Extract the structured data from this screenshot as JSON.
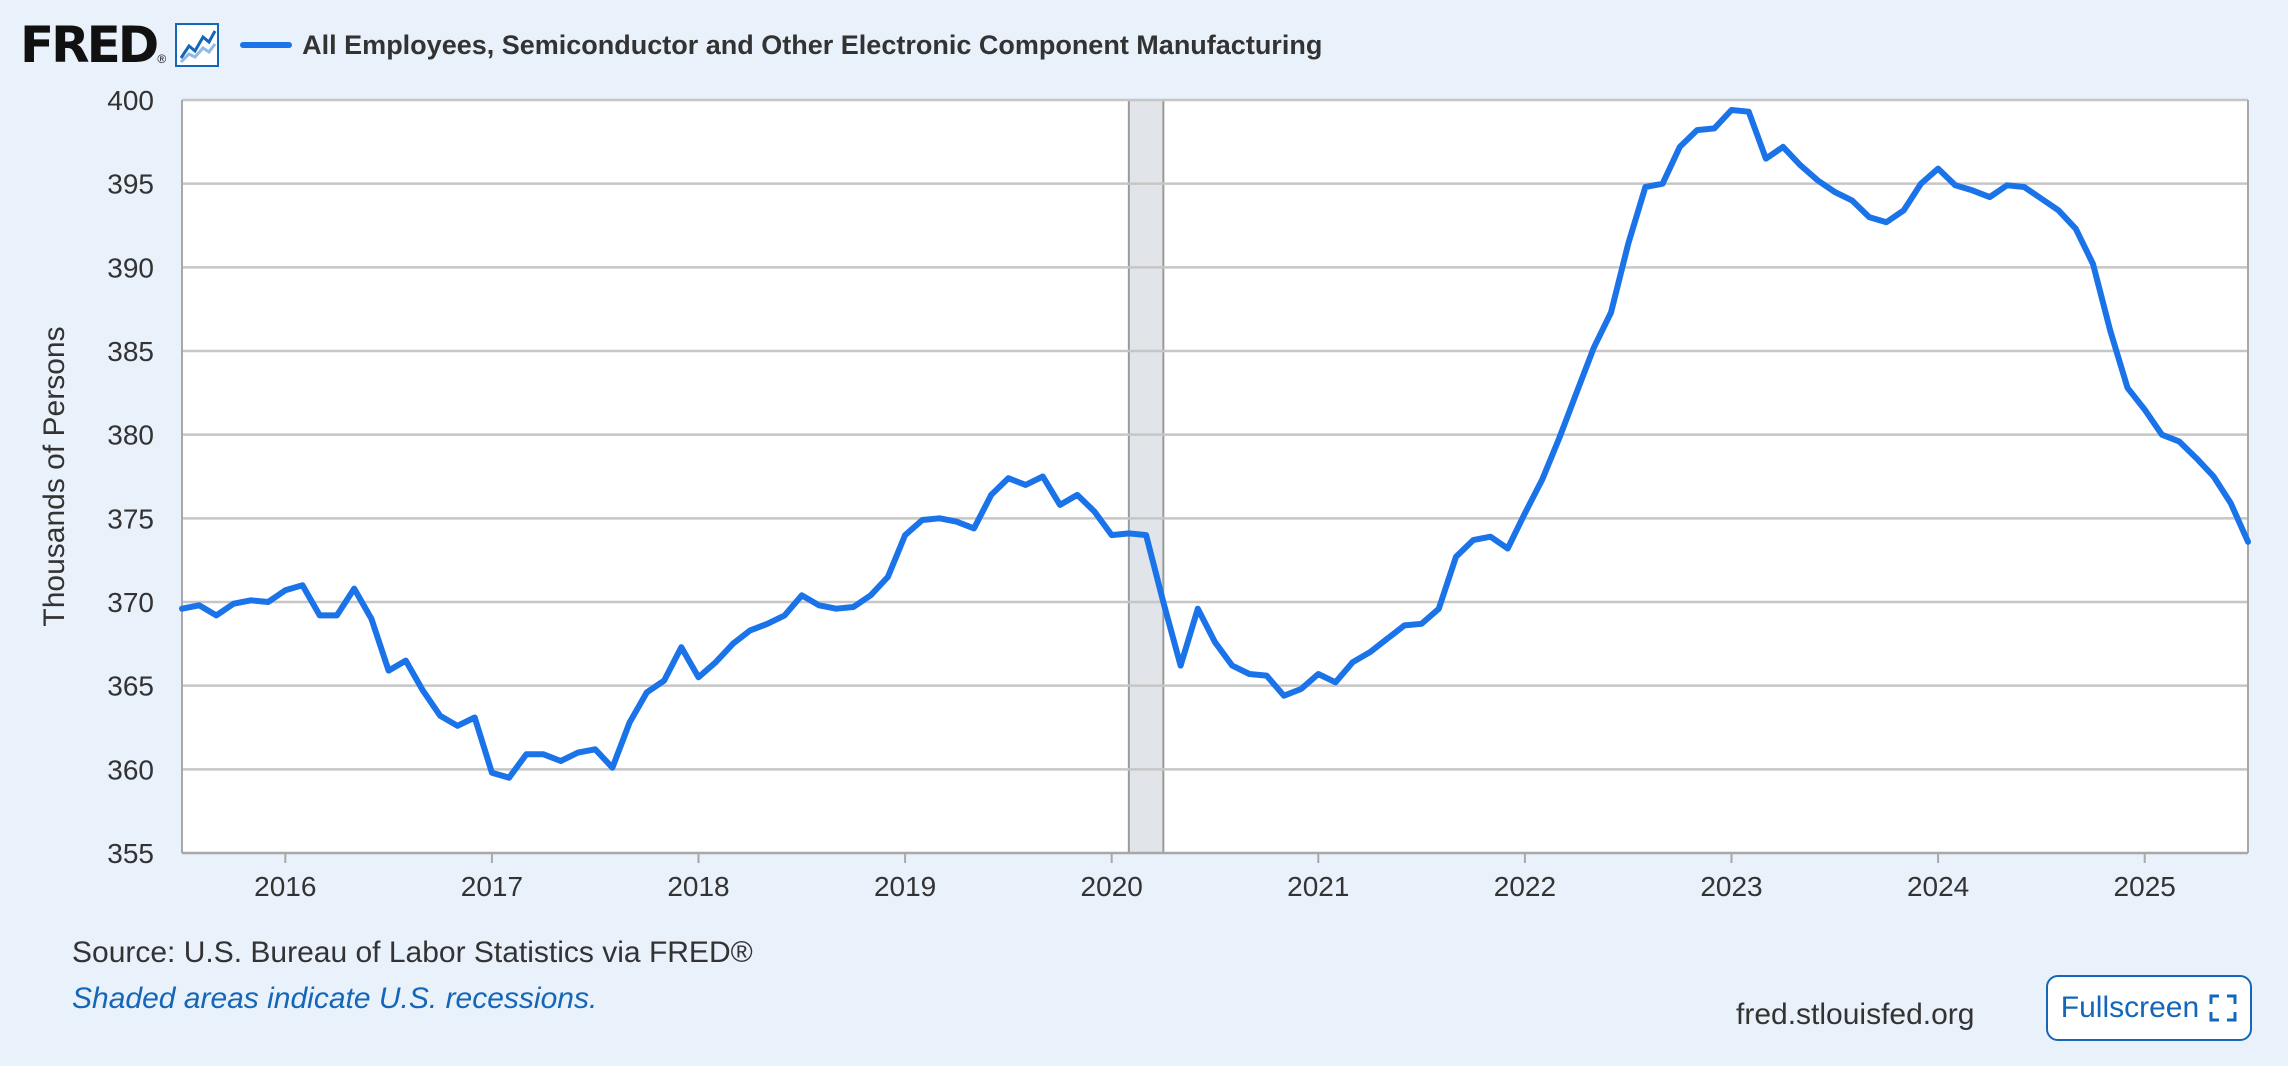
{
  "header": {
    "logo": "FRED",
    "logo_mark": "®",
    "title": "All Employees, Semiconductor and Other Electronic Component Manufacturing"
  },
  "colors": {
    "series": "#1a73e8",
    "grid": "#c6c6c6",
    "recession": "#e1e5e9",
    "background": "#e9f1fb",
    "link": "#1466b8"
  },
  "footer": {
    "source": "Source: U.S. Bureau of Labor Statistics via FRED®",
    "recession_note": "Shaded areas indicate U.S. recessions.",
    "site": "fred.stlouisfed.org",
    "fullscreen_label": "Fullscreen",
    "fullscreen_icon": "expand-icon"
  },
  "chart_data": {
    "type": "line",
    "title": "All Employees, Semiconductor and Other Electronic Component Manufacturing",
    "xlabel": "",
    "ylabel": "Thousands of Persons",
    "ylim": [
      355,
      400
    ],
    "yticks": [
      355,
      360,
      365,
      370,
      375,
      380,
      385,
      390,
      395,
      400
    ],
    "xlim": [
      2015.5,
      2025.5
    ],
    "xticks": [
      2016,
      2017,
      2018,
      2019,
      2020,
      2021,
      2022,
      2023,
      2024,
      2025
    ],
    "x_tick_labels": [
      "2016",
      "2017",
      "2018",
      "2019",
      "2020",
      "2021",
      "2022",
      "2023",
      "2024",
      "2025"
    ],
    "grid": true,
    "recessions": [
      [
        2020.083,
        2020.25
      ]
    ],
    "series": [
      {
        "name": "All Employees, Semiconductor and Other Electronic Component Manufacturing",
        "start": 2015.5,
        "step": 0.083333,
        "values": [
          369.6,
          369.8,
          369.2,
          369.9,
          370.1,
          370.0,
          370.7,
          371.0,
          369.2,
          369.2,
          370.8,
          369.0,
          365.9,
          366.5,
          364.7,
          363.2,
          362.6,
          363.1,
          359.8,
          359.5,
          360.9,
          360.9,
          360.5,
          361.0,
          361.2,
          360.1,
          362.8,
          364.6,
          365.3,
          367.3,
          365.5,
          366.4,
          367.5,
          368.3,
          368.7,
          369.2,
          370.4,
          369.8,
          369.6,
          369.7,
          370.4,
          371.5,
          374.0,
          374.9,
          375.0,
          374.8,
          374.4,
          376.4,
          377.4,
          377.0,
          377.5,
          375.8,
          376.4,
          375.4,
          374.0,
          374.1,
          374.0,
          370.0,
          366.2,
          369.6,
          367.6,
          366.2,
          365.7,
          365.6,
          364.4,
          364.8,
          365.7,
          365.2,
          366.4,
          367.0,
          367.8,
          368.6,
          368.7,
          369.6,
          372.7,
          373.7,
          373.9,
          373.2,
          375.3,
          377.3,
          379.8,
          382.5,
          385.2,
          387.3,
          391.4,
          394.8,
          395.0,
          397.2,
          398.2,
          398.3,
          399.4,
          399.3,
          396.5,
          397.2,
          396.1,
          395.2,
          394.5,
          394.0,
          393.0,
          392.7,
          393.4,
          395.0,
          395.9,
          394.9,
          394.6,
          394.2,
          394.9,
          394.8,
          394.1,
          393.4,
          392.3,
          390.2,
          386.2,
          382.8,
          381.5,
          380.0,
          379.6,
          378.6,
          377.5,
          375.9,
          373.6
        ]
      }
    ]
  }
}
